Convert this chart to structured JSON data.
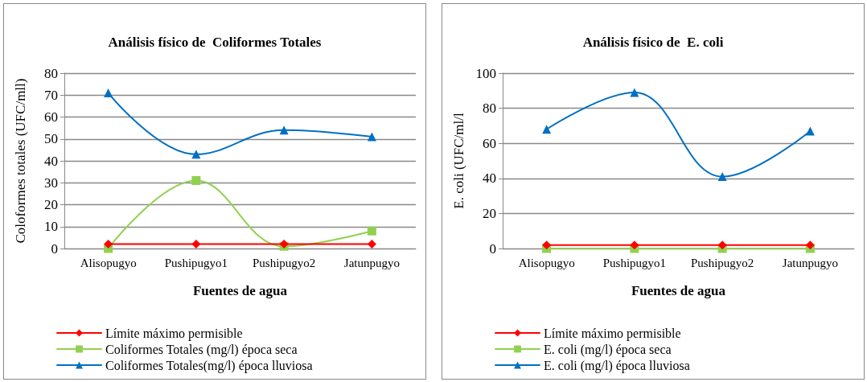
{
  "chart_data": [
    {
      "type": "line",
      "title": "Análisis físico de  Coliformes Totales",
      "xlabel": "Fuentes de agua",
      "ylabel": "Coloformes totales (UFC/mll)",
      "categories": [
        "Alisopugyo",
        "Pushipugyo1",
        "Pushipugyo2",
        "Jatunpugyo"
      ],
      "series": [
        {
          "name": "Límite máximo permisible",
          "color": "#ff0000",
          "marker": "diamond",
          "values": [
            2,
            2,
            2,
            2
          ]
        },
        {
          "name": "Coliformes Totales (mg/l) época seca",
          "color": "#92d050",
          "marker": "square",
          "values": [
            0,
            31,
            1,
            8
          ]
        },
        {
          "name": "Coliformes Totales(mg/l) época lluviosa",
          "color": "#0070c0",
          "marker": "triangle",
          "values": [
            71,
            43,
            54,
            51
          ]
        }
      ],
      "ylim": [
        0,
        80
      ],
      "yticks": [
        0,
        10,
        20,
        30,
        40,
        50,
        60,
        70,
        80
      ],
      "grid": "y",
      "legend": "bottom"
    },
    {
      "type": "line",
      "title": "Análisis físico de  E. coli",
      "xlabel": "Fuentes de agua",
      "ylabel": "E. coli (UFC/ml/l",
      "categories": [
        "Alisopugyo",
        "Pushipugyo1",
        "Pushipugyo2",
        "Jatunpugyo"
      ],
      "series": [
        {
          "name": "Límite máximo permisible",
          "color": "#ff0000",
          "marker": "diamond",
          "values": [
            2,
            2,
            2,
            2
          ]
        },
        {
          "name": "E. coli (mg/l) época seca",
          "color": "#92d050",
          "marker": "square",
          "values": [
            0,
            0,
            0,
            0
          ]
        },
        {
          "name": "E. coli (mg/l) época lluviosa",
          "color": "#0070c0",
          "marker": "triangle",
          "values": [
            68,
            89,
            41,
            67
          ]
        }
      ],
      "ylim": [
        0,
        100
      ],
      "yticks": [
        0,
        20,
        40,
        60,
        80,
        100
      ],
      "grid": "y",
      "legend": "bottom"
    }
  ]
}
